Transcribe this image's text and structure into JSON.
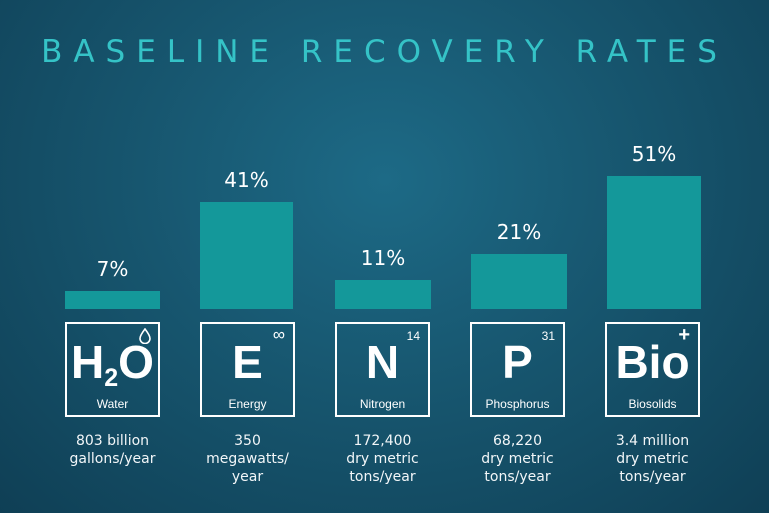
{
  "chart_data": {
    "type": "bar",
    "title": "BASELINE RECOVERY RATES",
    "categories": [
      "Water",
      "Energy",
      "Nitrogen",
      "Phosphorus",
      "Biosolids"
    ],
    "values": [
      7,
      41,
      11,
      21,
      51
    ],
    "value_labels": [
      "7%",
      "41%",
      "11%",
      "21%",
      "51%"
    ],
    "ylim": [
      0,
      55
    ],
    "grid": false,
    "bar_color": "#14989a",
    "tiles": [
      {
        "symbol": "H",
        "subscript": "2",
        "symbol_suffix": "O",
        "name": "Water",
        "corner": "",
        "corner_icon": "droplet-icon",
        "stat": [
          "803 billion",
          "gallons/year"
        ]
      },
      {
        "symbol": "E",
        "subscript": "",
        "symbol_suffix": "",
        "name": "Energy",
        "corner": "∞",
        "corner_icon": "infinity-icon",
        "stat": [
          "350",
          "megawatts/",
          "year"
        ]
      },
      {
        "symbol": "N",
        "subscript": "",
        "symbol_suffix": "",
        "name": "Nitrogen",
        "corner": "14",
        "corner_icon": "",
        "stat": [
          "172,400",
          "dry metric",
          "tons/year"
        ]
      },
      {
        "symbol": "P",
        "subscript": "",
        "symbol_suffix": "",
        "name": "Phosphorus",
        "corner": "31",
        "corner_icon": "",
        "stat": [
          "68,220",
          "dry metric",
          "tons/year"
        ]
      },
      {
        "symbol": "Bio",
        "subscript": "",
        "symbol_suffix": "",
        "name": "Biosolids",
        "corner": "+",
        "corner_icon": "plus-icon",
        "stat": [
          "3.4 million",
          "dry metric",
          "tons/year"
        ]
      }
    ]
  },
  "colors": {
    "title": "#35c3c7",
    "bar": "#14989a",
    "text": "#ffffff"
  }
}
